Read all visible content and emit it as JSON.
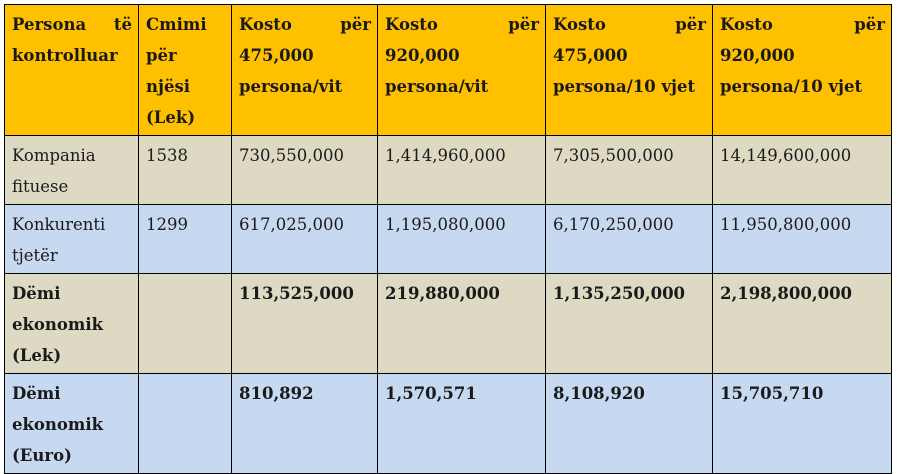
{
  "table": {
    "headers": [
      "Persona të kontrolluar",
      "Cmimi për njësi (Lek)",
      "Kosto për 475,000 persona/vit",
      "Kosto për 920,000 persona/vit",
      "Kosto për 475,000 persona/10 vjet",
      "Kosto për 920,000 persona/10 vjet"
    ],
    "rows": [
      [
        "Kompania fituese",
        "1538",
        "730,550,000",
        "1,414,960,000",
        "7,305,500,000",
        "14,149,600,000"
      ],
      [
        "Konkurenti tjetër",
        "1299",
        "617,025,000",
        "1,195,080,000",
        "6,170,250,000",
        "11,950,800,000"
      ],
      [
        "Dëmi ekonomik (Lek)",
        "",
        "113,525,000",
        "219,880,000",
        "1,135,250,000",
        "2,198,800,000"
      ],
      [
        "Dëmi ekonomik (Euro)",
        "",
        "810,892",
        "1,570,571",
        "8,108,920",
        "15,705,710"
      ]
    ]
  },
  "colors": {
    "header_bg": "#ffc000",
    "row_tan": "#ddd9c3",
    "row_blue": "#c6d9f1",
    "border": "#000000"
  }
}
